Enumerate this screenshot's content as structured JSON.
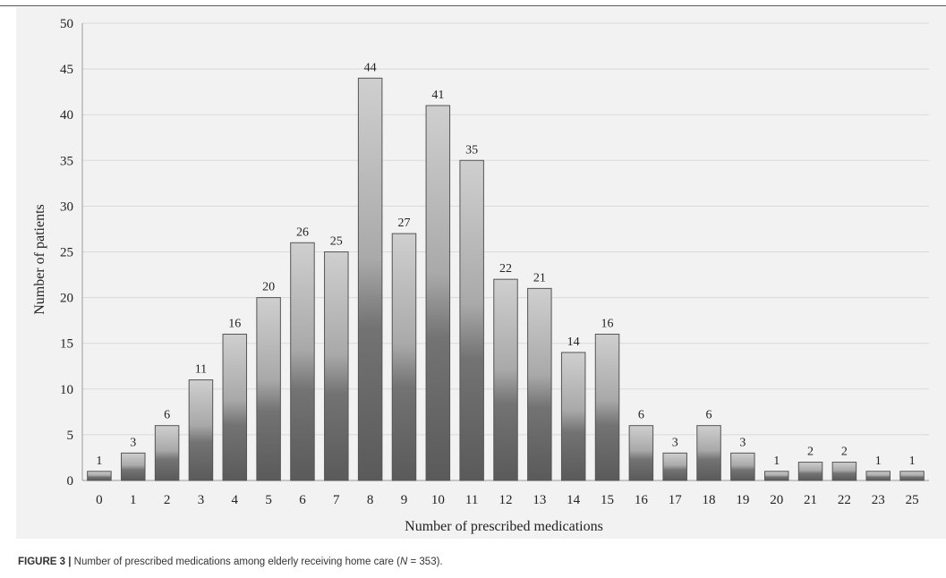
{
  "chart_data": {
    "type": "bar",
    "categories": [
      "0",
      "1",
      "2",
      "3",
      "4",
      "5",
      "6",
      "7",
      "8",
      "9",
      "10",
      "11",
      "12",
      "13",
      "14",
      "15",
      "16",
      "17",
      "18",
      "19",
      "20",
      "21",
      "22",
      "23",
      "25"
    ],
    "values": [
      1,
      3,
      6,
      11,
      16,
      20,
      26,
      25,
      44,
      27,
      41,
      35,
      22,
      21,
      14,
      16,
      6,
      3,
      6,
      3,
      1,
      2,
      2,
      1,
      1
    ],
    "xlabel": "Number of prescribed medications",
    "ylabel": "Number of patients",
    "ylim": [
      0,
      50
    ],
    "yticks": [
      0,
      5,
      10,
      15,
      20,
      25,
      30,
      35,
      40,
      45,
      50
    ],
    "grid": true,
    "colors": {
      "bar_top": "#cfcfcf",
      "bar_bottom": "#555555",
      "bar_stroke": "#555555",
      "grid": "#d9d9d9",
      "panel": "#f2f2f2"
    }
  },
  "caption": {
    "label": "FIGURE 3 |",
    "text_before": " Number of prescribed medications among elderly receiving home care (",
    "n_symbol": "N",
    "text_after": " = 353)."
  }
}
